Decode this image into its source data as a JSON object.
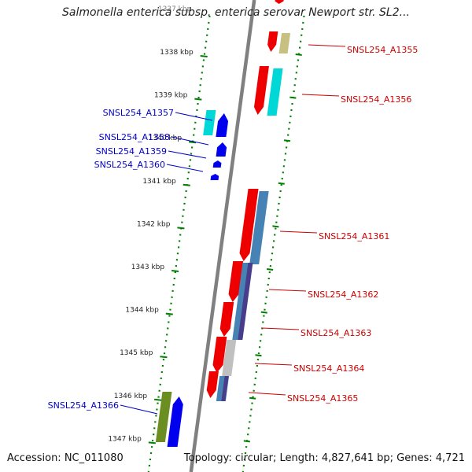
{
  "title": "Salmonella enterica subsp. enterica serovar Newport str. SL2...",
  "faded_tick_label": "1337 kbp",
  "ticks": [
    {
      "kbp": 1338,
      "label": "1338 kbp"
    },
    {
      "kbp": 1339,
      "label": "1339 kbp"
    },
    {
      "kbp": 1340,
      "label": "1340 kbp"
    },
    {
      "kbp": 1341,
      "label": "1341 kbp"
    },
    {
      "kbp": 1342,
      "label": "1342 kbp"
    },
    {
      "kbp": 1343,
      "label": "1343 kbp"
    },
    {
      "kbp": 1344,
      "label": "1344 kbp"
    },
    {
      "kbp": 1345,
      "label": "1345 kbp"
    },
    {
      "kbp": 1346,
      "label": "1346 kbp"
    },
    {
      "kbp": 1347,
      "label": "1347 kbp"
    }
  ],
  "genes_forward": [
    {
      "name": "SNSL254_A1355",
      "label_color": "#cc0000"
    },
    {
      "name": "SNSL254_A1356",
      "label_color": "#cc0000"
    },
    {
      "name": "SNSL254_A1361",
      "label_color": "#cc0000"
    },
    {
      "name": "SNSL254_A1362",
      "label_color": "#cc0000"
    },
    {
      "name": "SNSL254_A1363",
      "label_color": "#cc0000"
    },
    {
      "name": "SNSL254_A1364",
      "label_color": "#cc0000"
    },
    {
      "name": "SNSL254_A1365",
      "label_color": "#cc0000"
    }
  ],
  "genes_reverse": [
    {
      "name": "SNSL254_A1357",
      "label_color": "#0000cc"
    },
    {
      "name": "SNSL254_A1358",
      "label_color": "#0000cc"
    },
    {
      "name": "SNSL254_A1359",
      "label_color": "#0000cc"
    },
    {
      "name": "SNSL254_A1360",
      "label_color": "#0000cc"
    },
    {
      "name": "SNSL254_A1366",
      "label_color": "#0000cc"
    }
  ],
  "colors": {
    "forward_cds": "#ee0000",
    "reverse_cds": "#0000ee",
    "cyan_feature": "#00d8d8",
    "khaki_feature": "#c8c080",
    "steelblue_feature": "#4682b4",
    "purple_feature": "#483d8b",
    "grey_feature": "#c0c0c0",
    "olive_feature": "#6b8e23",
    "backbone": "#808080",
    "tick_green": "#008000"
  },
  "footer": {
    "accession": "Accession: NC_011080",
    "topology": "Topology: circular; Length: 4,827,641 bp; Genes: 4,721"
  }
}
